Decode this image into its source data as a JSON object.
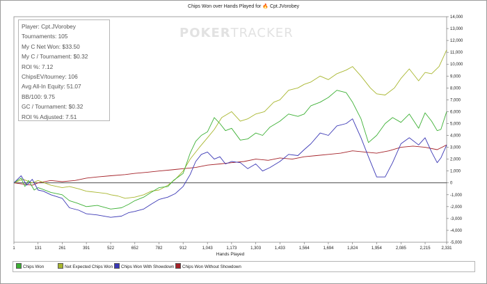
{
  "title": "Chips Won over Hands Played for",
  "player_name": "Cpt.JVorobey",
  "flame_icon": "flame-icon",
  "watermark": {
    "bold": "POKER",
    "thin": "TRACKER"
  },
  "stats": [
    "Player: Cpt.JVorobey",
    "Tournaments: 105",
    "My C Net Won: $33.50",
    "My C / Tournament: $0.32",
    "ROI %: 7.12",
    "ChipsEV/tourney: 106",
    "Avg All-In Equity: 51.07",
    "BB/100: 9.75",
    "GC / Tournament: $0.32",
    "ROI % Adjusted: 7.51"
  ],
  "legend": [
    {
      "label": "Chips Won",
      "color": "#3cb034"
    },
    {
      "label": "Net Expected Chips Won",
      "color": "#a8b62e"
    },
    {
      "label": "Chips Won With Showdown",
      "color": "#3a37b5"
    },
    {
      "label": "Chips Won Without Showdown",
      "color": "#a42128"
    }
  ],
  "chart_data": {
    "type": "line",
    "title": "Chips Won over Hands Played for Cpt.JVorobey",
    "xlabel": "Hands Played",
    "ylabel": "",
    "xlim": [
      1,
      2331
    ],
    "ylim": [
      -5000,
      14000
    ],
    "x_ticks": [
      "1",
      "131",
      "261",
      "391",
      "522",
      "652",
      "782",
      "912",
      "1,043",
      "1,173",
      "1,303",
      "1,433",
      "1,564",
      "1,694",
      "1,824",
      "1,954",
      "2,085",
      "2,215",
      "2,331"
    ],
    "y_ticks": [
      "-5,000",
      "-4,000",
      "-3,000",
      "-2,000",
      "-1,000",
      "0",
      "1,000",
      "2,000",
      "3,000",
      "4,000",
      "5,000",
      "6,000",
      "7,000",
      "8,000",
      "9,000",
      "10,000",
      "11,000",
      "12,000",
      "13,000",
      "14,000"
    ],
    "y_tick_values": [
      -5000,
      -4000,
      -3000,
      -2000,
      -1000,
      0,
      1000,
      2000,
      3000,
      4000,
      5000,
      6000,
      7000,
      8000,
      9000,
      10000,
      11000,
      12000,
      13000,
      14000
    ],
    "grid": false,
    "legend_position": "bottom",
    "series": [
      {
        "name": "Chips Won",
        "color": "#3cb034",
        "x": [
          1,
          40,
          60,
          80,
          110,
          131,
          150,
          200,
          261,
          300,
          340,
          391,
          450,
          522,
          580,
          620,
          652,
          700,
          740,
          782,
          830,
          860,
          912,
          950,
          980,
          1010,
          1043,
          1080,
          1110,
          1140,
          1173,
          1220,
          1260,
          1303,
          1340,
          1380,
          1433,
          1480,
          1530,
          1564,
          1600,
          1650,
          1694,
          1740,
          1790,
          1824,
          1870,
          1910,
          1954,
          2000,
          2040,
          2085,
          2130,
          2180,
          2215,
          2250,
          2280,
          2300,
          2331
        ],
        "y": [
          0,
          400,
          -300,
          200,
          -600,
          -400,
          -500,
          -800,
          -1000,
          -1500,
          -1700,
          -2000,
          -1900,
          -2200,
          -2100,
          -1800,
          -1500,
          -1200,
          -800,
          -400,
          -300,
          200,
          800,
          2500,
          3500,
          4000,
          4300,
          5500,
          5000,
          4400,
          4600,
          3600,
          3700,
          4200,
          4000,
          4700,
          5200,
          5800,
          5600,
          5800,
          6500,
          6800,
          7200,
          7800,
          7600,
          6800,
          5400,
          3400,
          4000,
          5000,
          5500,
          5100,
          5800,
          4600,
          5900,
          5200,
          4400,
          4500,
          6000
        ]
      },
      {
        "name": "Net Expected Chips Won",
        "color": "#a8b62e",
        "x": [
          1,
          50,
          100,
          131,
          200,
          261,
          300,
          350,
          391,
          450,
          500,
          522,
          560,
          600,
          652,
          700,
          740,
          782,
          830,
          870,
          912,
          950,
          1000,
          1043,
          1080,
          1120,
          1173,
          1220,
          1260,
          1303,
          1350,
          1400,
          1433,
          1480,
          1530,
          1564,
          1600,
          1650,
          1694,
          1740,
          1790,
          1824,
          1870,
          1920,
          1954,
          2000,
          2050,
          2085,
          2130,
          2180,
          2215,
          2250,
          2290,
          2331
        ],
        "y": [
          0,
          300,
          0,
          200,
          -200,
          -400,
          -300,
          -500,
          -700,
          -800,
          -900,
          -1000,
          -1100,
          -1300,
          -1200,
          -1000,
          -700,
          -600,
          -200,
          300,
          1000,
          2000,
          3000,
          3800,
          4500,
          5500,
          6000,
          5200,
          5400,
          5800,
          6000,
          6800,
          7000,
          7800,
          8000,
          8300,
          8500,
          9000,
          8700,
          9200,
          9500,
          9800,
          9000,
          8000,
          7500,
          7400,
          8000,
          8800,
          9600,
          8600,
          9300,
          9200,
          9800,
          11200
        ]
      },
      {
        "name": "Chips Won With Showdown",
        "color": "#3a37b5",
        "x": [
          1,
          40,
          70,
          100,
          131,
          160,
          200,
          261,
          300,
          350,
          391,
          450,
          522,
          580,
          620,
          652,
          700,
          740,
          782,
          830,
          870,
          912,
          950,
          980,
          1010,
          1043,
          1080,
          1110,
          1140,
          1173,
          1220,
          1260,
          1303,
          1340,
          1380,
          1433,
          1480,
          1530,
          1564,
          1600,
          1650,
          1694,
          1740,
          1790,
          1824,
          1870,
          1910,
          1954,
          2000,
          2040,
          2085,
          2130,
          2180,
          2215,
          2250,
          2280,
          2300,
          2331
        ],
        "y": [
          0,
          600,
          -200,
          300,
          -600,
          -700,
          -1000,
          -1300,
          -2100,
          -2300,
          -2600,
          -2700,
          -2900,
          -2800,
          -2500,
          -2400,
          -2200,
          -1800,
          -1400,
          -1200,
          -900,
          -300,
          700,
          1800,
          2400,
          2600,
          2000,
          2200,
          1600,
          1800,
          1700,
          1200,
          1600,
          1000,
          1300,
          1800,
          2400,
          2300,
          2800,
          3300,
          4200,
          4000,
          4800,
          5000,
          5400,
          3800,
          2200,
          500,
          500,
          1700,
          3300,
          3800,
          3200,
          3800,
          2600,
          1700,
          2100,
          3200
        ]
      },
      {
        "name": "Chips Won Without Showdown",
        "color": "#a42128",
        "x": [
          1,
          50,
          100,
          131,
          200,
          261,
          330,
          391,
          450,
          522,
          600,
          652,
          720,
          782,
          850,
          912,
          980,
          1043,
          1110,
          1173,
          1240,
          1303,
          1370,
          1433,
          1500,
          1564,
          1630,
          1694,
          1760,
          1824,
          1890,
          1954,
          2020,
          2085,
          2150,
          2215,
          2280,
          2331
        ],
        "y": [
          0,
          -100,
          -200,
          0,
          200,
          100,
          200,
          400,
          500,
          600,
          700,
          800,
          900,
          1000,
          1100,
          1200,
          1300,
          1500,
          1600,
          1700,
          1800,
          2000,
          1900,
          2100,
          2000,
          2200,
          2300,
          2400,
          2500,
          2700,
          2600,
          2500,
          2700,
          3000,
          3100,
          3000,
          2800,
          3200
        ]
      }
    ]
  }
}
